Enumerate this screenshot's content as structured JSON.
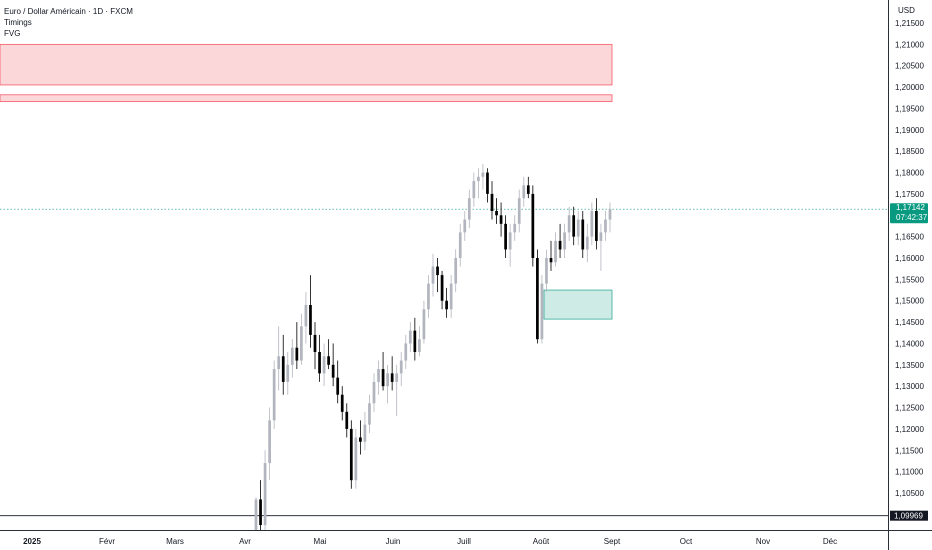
{
  "legend": {
    "symbol_title": "Euro / Dollar Américain · 1D · FXCM",
    "indicator_timings": "Timings",
    "indicator_fvg": "FVG"
  },
  "price_axis": {
    "currency": "USD",
    "ticks": [
      "1,21500",
      "1,21000",
      "1,20500",
      "1,20000",
      "1,19500",
      "1,19000",
      "1,18500",
      "1,18000",
      "1,17500",
      "1,17000",
      "1,16500",
      "1,16000",
      "1,15500",
      "1,15000",
      "1,14500",
      "1,14000",
      "1,13500",
      "1,13000",
      "1,12500",
      "1,12000",
      "1,11500",
      "1,11000",
      "1,10500"
    ],
    "tick_values": [
      1.215,
      1.21,
      1.205,
      1.2,
      1.195,
      1.19,
      1.185,
      1.18,
      1.175,
      1.17,
      1.165,
      1.16,
      1.155,
      1.15,
      1.145,
      1.14,
      1.135,
      1.13,
      1.125,
      1.12,
      1.115,
      1.11,
      1.105
    ]
  },
  "time_axis": {
    "labels": [
      "2025",
      "Févr",
      "Mars",
      "Avr",
      "Mai",
      "Juin",
      "Juill",
      "Août",
      "Sept",
      "Oct",
      "Nov",
      "Déc"
    ]
  },
  "current_price": {
    "value": 1.17142,
    "label": "1,17142",
    "countdown": "07:42:37",
    "color": "#089981"
  },
  "level_line": {
    "value": 1.09969,
    "label": "1,09969"
  },
  "colors": {
    "up": "#b2b5be",
    "down": "#000000",
    "fvg_bear": "#f23645",
    "fvg_bull": "#089981"
  },
  "chart_data": {
    "type": "candlestick",
    "symbol": "EURUSD",
    "timeframe": "1D",
    "y_range": [
      1.0955,
      1.2175
    ],
    "fvg_zones": [
      {
        "type": "bearish",
        "top": 1.21,
        "bottom": 1.2005
      },
      {
        "type": "bearish",
        "top": 1.1982,
        "bottom": 1.1966
      },
      {
        "type": "bullish",
        "top": 1.1525,
        "bottom": 1.1457
      }
    ],
    "candles": [
      {
        "o": 1.0955,
        "h": 1.104,
        "l": 1.0955,
        "c": 1.1035
      },
      {
        "o": 1.1035,
        "h": 1.108,
        "l": 1.096,
        "c": 1.0975
      },
      {
        "o": 1.0975,
        "h": 1.115,
        "l": 1.096,
        "c": 1.112
      },
      {
        "o": 1.112,
        "h": 1.125,
        "l": 1.108,
        "c": 1.122
      },
      {
        "o": 1.122,
        "h": 1.136,
        "l": 1.12,
        "c": 1.134
      },
      {
        "o": 1.134,
        "h": 1.144,
        "l": 1.129,
        "c": 1.137
      },
      {
        "o": 1.137,
        "h": 1.142,
        "l": 1.128,
        "c": 1.131
      },
      {
        "o": 1.131,
        "h": 1.138,
        "l": 1.128,
        "c": 1.135
      },
      {
        "o": 1.135,
        "h": 1.141,
        "l": 1.132,
        "c": 1.139
      },
      {
        "o": 1.139,
        "h": 1.145,
        "l": 1.134,
        "c": 1.136
      },
      {
        "o": 1.136,
        "h": 1.147,
        "l": 1.135,
        "c": 1.144
      },
      {
        "o": 1.144,
        "h": 1.152,
        "l": 1.14,
        "c": 1.149
      },
      {
        "o": 1.149,
        "h": 1.156,
        "l": 1.139,
        "c": 1.142
      },
      {
        "o": 1.142,
        "h": 1.145,
        "l": 1.134,
        "c": 1.138
      },
      {
        "o": 1.138,
        "h": 1.142,
        "l": 1.131,
        "c": 1.133
      },
      {
        "o": 1.133,
        "h": 1.14,
        "l": 1.13,
        "c": 1.137
      },
      {
        "o": 1.137,
        "h": 1.141,
        "l": 1.134,
        "c": 1.135
      },
      {
        "o": 1.135,
        "h": 1.14,
        "l": 1.13,
        "c": 1.132
      },
      {
        "o": 1.132,
        "h": 1.136,
        "l": 1.126,
        "c": 1.128
      },
      {
        "o": 1.128,
        "h": 1.13,
        "l": 1.122,
        "c": 1.124
      },
      {
        "o": 1.124,
        "h": 1.126,
        "l": 1.118,
        "c": 1.12
      },
      {
        "o": 1.12,
        "h": 1.122,
        "l": 1.106,
        "c": 1.108
      },
      {
        "o": 1.108,
        "h": 1.12,
        "l": 1.106,
        "c": 1.118
      },
      {
        "o": 1.118,
        "h": 1.122,
        "l": 1.114,
        "c": 1.117
      },
      {
        "o": 1.117,
        "h": 1.124,
        "l": 1.115,
        "c": 1.121
      },
      {
        "o": 1.121,
        "h": 1.128,
        "l": 1.119,
        "c": 1.126
      },
      {
        "o": 1.126,
        "h": 1.133,
        "l": 1.124,
        "c": 1.131
      },
      {
        "o": 1.131,
        "h": 1.136,
        "l": 1.128,
        "c": 1.134
      },
      {
        "o": 1.134,
        "h": 1.138,
        "l": 1.129,
        "c": 1.13
      },
      {
        "o": 1.13,
        "h": 1.135,
        "l": 1.126,
        "c": 1.133
      },
      {
        "o": 1.133,
        "h": 1.137,
        "l": 1.129,
        "c": 1.131
      },
      {
        "o": 1.131,
        "h": 1.135,
        "l": 1.123,
        "c": 1.133
      },
      {
        "o": 1.133,
        "h": 1.138,
        "l": 1.13,
        "c": 1.136
      },
      {
        "o": 1.136,
        "h": 1.142,
        "l": 1.134,
        "c": 1.14
      },
      {
        "o": 1.14,
        "h": 1.145,
        "l": 1.138,
        "c": 1.143
      },
      {
        "o": 1.143,
        "h": 1.146,
        "l": 1.136,
        "c": 1.138
      },
      {
        "o": 1.138,
        "h": 1.144,
        "l": 1.137,
        "c": 1.141
      },
      {
        "o": 1.141,
        "h": 1.15,
        "l": 1.14,
        "c": 1.148
      },
      {
        "o": 1.148,
        "h": 1.156,
        "l": 1.146,
        "c": 1.154
      },
      {
        "o": 1.154,
        "h": 1.161,
        "l": 1.151,
        "c": 1.158
      },
      {
        "o": 1.158,
        "h": 1.16,
        "l": 1.152,
        "c": 1.156
      },
      {
        "o": 1.156,
        "h": 1.157,
        "l": 1.148,
        "c": 1.15
      },
      {
        "o": 1.15,
        "h": 1.153,
        "l": 1.146,
        "c": 1.148
      },
      {
        "o": 1.148,
        "h": 1.156,
        "l": 1.146,
        "c": 1.154
      },
      {
        "o": 1.154,
        "h": 1.162,
        "l": 1.152,
        "c": 1.16
      },
      {
        "o": 1.16,
        "h": 1.168,
        "l": 1.158,
        "c": 1.166
      },
      {
        "o": 1.166,
        "h": 1.171,
        "l": 1.164,
        "c": 1.169
      },
      {
        "o": 1.169,
        "h": 1.176,
        "l": 1.167,
        "c": 1.174
      },
      {
        "o": 1.174,
        "h": 1.18,
        "l": 1.172,
        "c": 1.178
      },
      {
        "o": 1.178,
        "h": 1.181,
        "l": 1.174,
        "c": 1.179
      },
      {
        "o": 1.179,
        "h": 1.182,
        "l": 1.176,
        "c": 1.18
      },
      {
        "o": 1.18,
        "h": 1.181,
        "l": 1.173,
        "c": 1.175
      },
      {
        "o": 1.175,
        "h": 1.178,
        "l": 1.169,
        "c": 1.171
      },
      {
        "o": 1.171,
        "h": 1.174,
        "l": 1.168,
        "c": 1.17
      },
      {
        "o": 1.17,
        "h": 1.173,
        "l": 1.165,
        "c": 1.168
      },
      {
        "o": 1.168,
        "h": 1.17,
        "l": 1.16,
        "c": 1.162
      },
      {
        "o": 1.162,
        "h": 1.168,
        "l": 1.158,
        "c": 1.166
      },
      {
        "o": 1.166,
        "h": 1.17,
        "l": 1.164,
        "c": 1.168
      },
      {
        "o": 1.168,
        "h": 1.176,
        "l": 1.166,
        "c": 1.174
      },
      {
        "o": 1.174,
        "h": 1.179,
        "l": 1.172,
        "c": 1.177
      },
      {
        "o": 1.177,
        "h": 1.179,
        "l": 1.174,
        "c": 1.175
      },
      {
        "o": 1.175,
        "h": 1.177,
        "l": 1.158,
        "c": 1.16
      },
      {
        "o": 1.16,
        "h": 1.162,
        "l": 1.14,
        "c": 1.141
      },
      {
        "o": 1.141,
        "h": 1.156,
        "l": 1.14,
        "c": 1.154
      },
      {
        "o": 1.154,
        "h": 1.162,
        "l": 1.152,
        "c": 1.16
      },
      {
        "o": 1.16,
        "h": 1.164,
        "l": 1.157,
        "c": 1.159
      },
      {
        "o": 1.159,
        "h": 1.166,
        "l": 1.158,
        "c": 1.164
      },
      {
        "o": 1.164,
        "h": 1.168,
        "l": 1.16,
        "c": 1.162
      },
      {
        "o": 1.162,
        "h": 1.168,
        "l": 1.16,
        "c": 1.166
      },
      {
        "o": 1.166,
        "h": 1.172,
        "l": 1.164,
        "c": 1.17
      },
      {
        "o": 1.17,
        "h": 1.172,
        "l": 1.163,
        "c": 1.165
      },
      {
        "o": 1.165,
        "h": 1.171,
        "l": 1.163,
        "c": 1.169
      },
      {
        "o": 1.169,
        "h": 1.171,
        "l": 1.16,
        "c": 1.162
      },
      {
        "o": 1.162,
        "h": 1.168,
        "l": 1.159,
        "c": 1.165
      },
      {
        "o": 1.165,
        "h": 1.173,
        "l": 1.163,
        "c": 1.171
      },
      {
        "o": 1.171,
        "h": 1.174,
        "l": 1.162,
        "c": 1.164
      },
      {
        "o": 1.164,
        "h": 1.168,
        "l": 1.157,
        "c": 1.166
      },
      {
        "o": 1.166,
        "h": 1.171,
        "l": 1.164,
        "c": 1.169
      },
      {
        "o": 1.169,
        "h": 1.173,
        "l": 1.166,
        "c": 1.1714
      }
    ]
  }
}
